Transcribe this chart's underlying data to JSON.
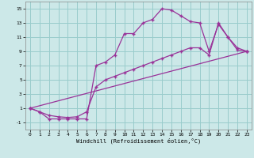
{
  "xlabel": "Windchill (Refroidissement éolien,°C)",
  "background_color": "#cce8e8",
  "grid_color": "#99cccc",
  "line_color": "#993399",
  "xlim": [
    -0.5,
    23.5
  ],
  "ylim": [
    -2.0,
    16.0
  ],
  "xticks": [
    0,
    1,
    2,
    3,
    4,
    5,
    6,
    7,
    8,
    9,
    10,
    11,
    12,
    13,
    14,
    15,
    16,
    17,
    18,
    19,
    20,
    21,
    22,
    23
  ],
  "yticks": [
    -1,
    1,
    3,
    5,
    7,
    9,
    11,
    13,
    15
  ],
  "line1_x": [
    0,
    1,
    2,
    3,
    4,
    5,
    6,
    7,
    8,
    9,
    10,
    11,
    12,
    13,
    14,
    15,
    16,
    17,
    18,
    19,
    20,
    21,
    22,
    23
  ],
  "line1_y": [
    1.0,
    0.5,
    -0.5,
    -0.5,
    -0.5,
    -0.5,
    -0.5,
    7.0,
    7.5,
    8.5,
    11.5,
    11.5,
    13.0,
    13.5,
    15.0,
    14.8,
    14.0,
    13.2,
    13.0,
    9.0,
    12.8,
    11.0,
    9.2,
    9.0
  ],
  "line2_x": [
    0,
    23
  ],
  "line2_y": [
    1.0,
    9.0
  ],
  "line3_x": [
    0,
    1,
    2,
    3,
    4,
    5,
    6,
    7,
    8,
    9,
    10,
    11,
    12,
    13,
    14,
    15,
    16,
    17,
    18,
    19,
    20,
    21,
    22,
    23
  ],
  "line3_y": [
    1.0,
    0.5,
    0.0,
    -0.2,
    -0.3,
    -0.2,
    0.5,
    4.0,
    5.0,
    5.5,
    6.0,
    6.5,
    7.0,
    7.5,
    8.0,
    8.5,
    9.0,
    9.5,
    9.5,
    8.5,
    13.0,
    11.0,
    9.5,
    9.0
  ],
  "marker": "+"
}
